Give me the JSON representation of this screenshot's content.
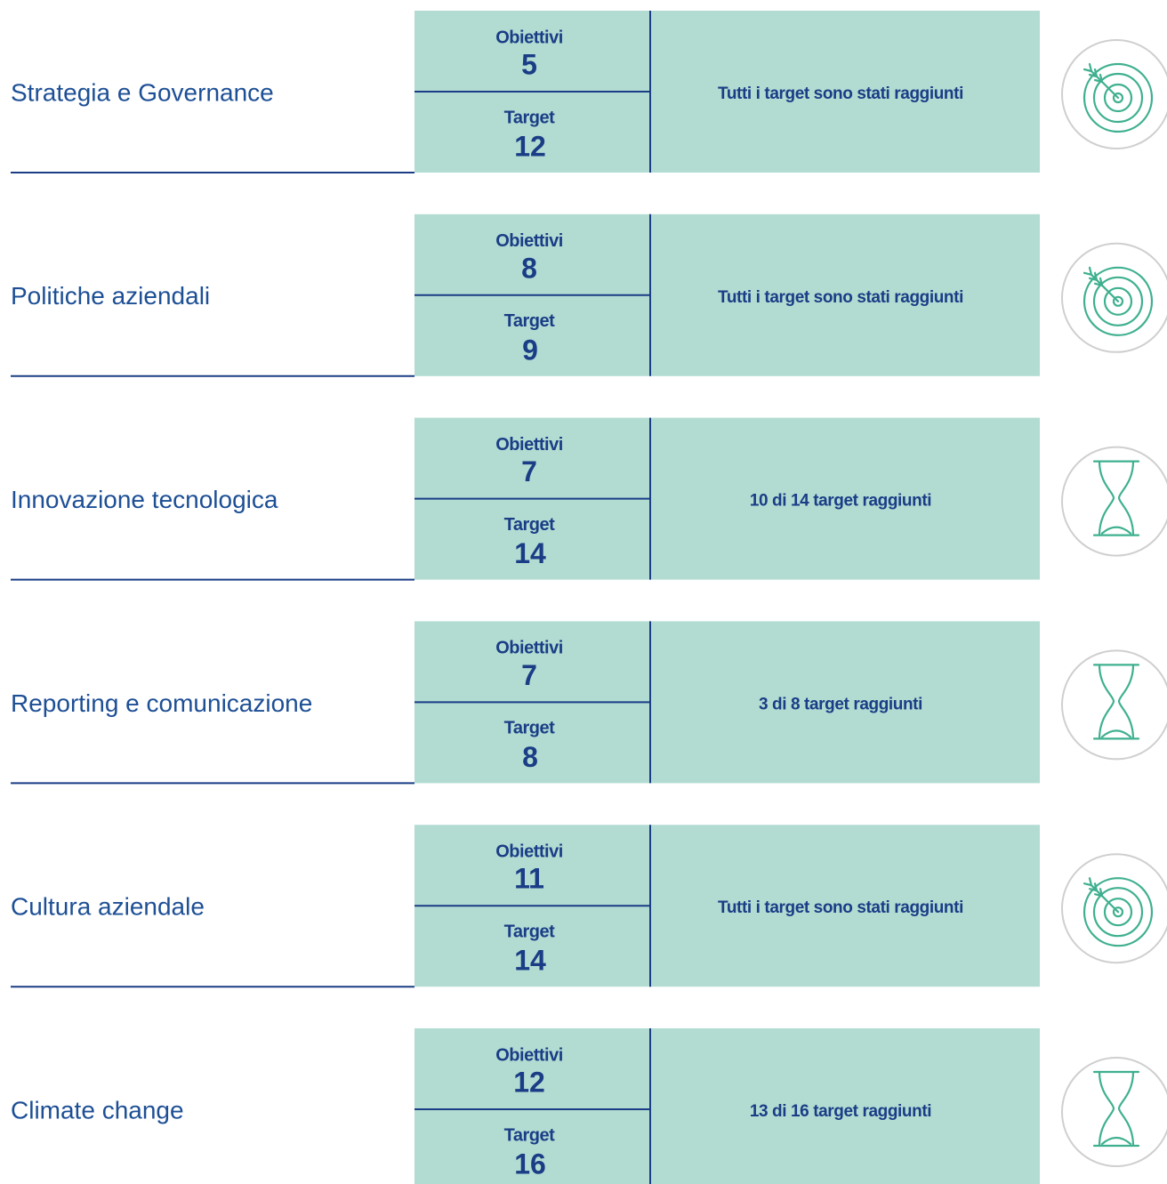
{
  "rows": [
    {
      "name": "Strategia e Governance",
      "obiettivi_label": "Obiettivi",
      "obiettivi": "5",
      "target_label": "Target",
      "target": "12",
      "status": "Tutti i target sono stati raggiunti",
      "icon": "target"
    },
    {
      "name": "Politiche aziendali",
      "obiettivi_label": "Obiettivi",
      "obiettivi": "8",
      "target_label": "Target",
      "target": "9",
      "status": "Tutti i target sono stati raggiunti",
      "icon": "target"
    },
    {
      "name": "Innovazione tecnologica",
      "obiettivi_label": "Obiettivi",
      "obiettivi": "7",
      "target_label": "Target",
      "target": "14",
      "status": "10 di 14 target raggiunti",
      "icon": "hourglass"
    },
    {
      "name": "Reporting e comunicazione",
      "obiettivi_label": "Obiettivi",
      "obiettivi": "7",
      "target_label": "Target",
      "target": "8",
      "status": "3 di 8 target raggiunti",
      "icon": "hourglass"
    },
    {
      "name": "Cultura aziendale",
      "obiettivi_label": "Obiettivi",
      "obiettivi": "11",
      "target_label": "Target",
      "target": "14",
      "status": "Tutti i target sono stati raggiunti",
      "icon": "target"
    },
    {
      "name": "Climate change",
      "obiettivi_label": "Obiettivi",
      "obiettivi": "12",
      "target_label": "Target",
      "target": "16",
      "status": "13 di 16 target raggiunti",
      "icon": "hourglass"
    }
  ]
}
